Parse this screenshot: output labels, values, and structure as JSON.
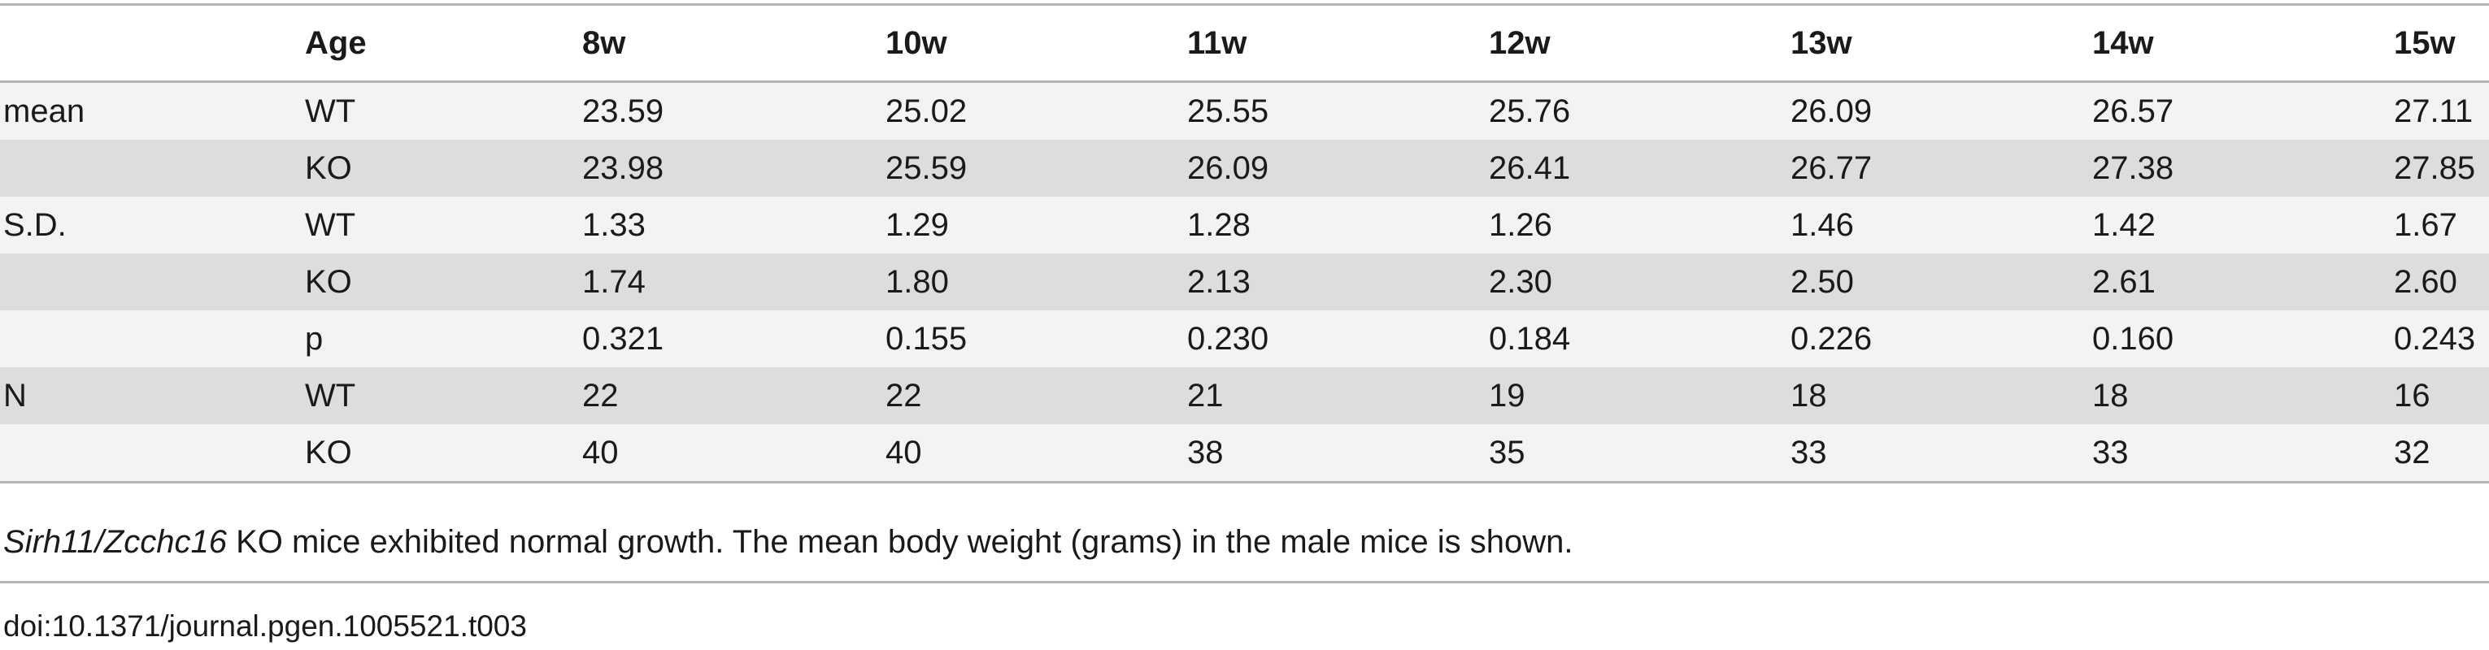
{
  "table": {
    "header": [
      null,
      "Age",
      "8w",
      "10w",
      "11w",
      "12w",
      "13w",
      "14w",
      "15w"
    ],
    "rows": [
      [
        "mean",
        "WT",
        "23.59",
        "25.02",
        "25.55",
        "25.76",
        "26.09",
        "26.57",
        "27.11"
      ],
      [
        null,
        "KO",
        "23.98",
        "25.59",
        "26.09",
        "26.41",
        "26.77",
        "27.38",
        "27.85"
      ],
      [
        "S.D.",
        "WT",
        "1.33",
        "1.29",
        "1.28",
        "1.26",
        "1.46",
        "1.42",
        "1.67"
      ],
      [
        null,
        "KO",
        "1.74",
        "1.80",
        "2.13",
        "2.30",
        "2.50",
        "2.61",
        "2.60"
      ],
      [
        null,
        "p",
        "0.321",
        "0.155",
        "0.230",
        "0.184",
        "0.226",
        "0.160",
        "0.243"
      ],
      [
        "N",
        "WT",
        "22",
        "22",
        "21",
        "19",
        "18",
        "18",
        "16"
      ],
      [
        null,
        "KO",
        "40",
        "40",
        "38",
        "35",
        "33",
        "33",
        "32"
      ]
    ]
  },
  "caption": {
    "italic": "Sirh11/Zcchc16",
    "text": " KO mice exhibited normal growth. The mean body weight (grams) in the male mice is shown."
  },
  "doi": "doi:10.1371/journal.pgen.1005521.t003"
}
